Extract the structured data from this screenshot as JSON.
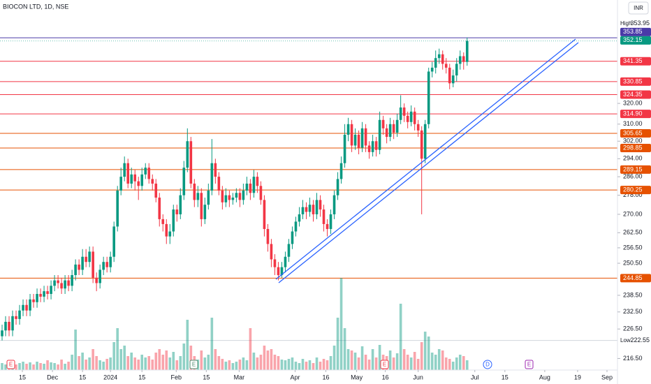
{
  "chart_data": {
    "type": "candlestick",
    "title": "BIOCON LTD, 1D, NSE",
    "currency": "INR",
    "log_scale": true,
    "grid": false,
    "ylim": [
      212.7,
      366.2
    ],
    "yticks": [
      {
        "value": 320,
        "label": "320.00"
      },
      {
        "value": 310,
        "label": "310.00"
      },
      {
        "value": 302,
        "label": "302.00"
      },
      {
        "value": 294,
        "label": "294.00"
      },
      {
        "value": 286,
        "label": "286.00"
      },
      {
        "value": 278,
        "label": "278.00"
      },
      {
        "value": 270,
        "label": "270.00"
      },
      {
        "value": 262.5,
        "label": "262.50"
      },
      {
        "value": 256.5,
        "label": "256.50"
      },
      {
        "value": 250.5,
        "label": "250.50"
      },
      {
        "value": 238.5,
        "label": "238.50"
      },
      {
        "value": 232.5,
        "label": "232.50"
      },
      {
        "value": 226.5,
        "label": "226.50"
      },
      {
        "value": 216.5,
        "label": "216.50"
      }
    ],
    "xlim": [
      -0.6,
      176
    ],
    "xticks": [
      {
        "value": 5.8,
        "label": "15"
      },
      {
        "value": 14.4,
        "label": "Dec"
      },
      {
        "value": 23,
        "label": "15"
      },
      {
        "value": 31,
        "label": "2024"
      },
      {
        "value": 40,
        "label": "15"
      },
      {
        "value": 49.8,
        "label": "Feb"
      },
      {
        "value": 58.4,
        "label": "15"
      },
      {
        "value": 67.8,
        "label": "Mar"
      },
      {
        "value": 83.8,
        "label": "Apr"
      },
      {
        "value": 92.6,
        "label": "16"
      },
      {
        "value": 101.4,
        "label": "May"
      },
      {
        "value": 109.6,
        "label": "16"
      },
      {
        "value": 119,
        "label": "Jun"
      },
      {
        "value": 135.2,
        "label": "Jul"
      },
      {
        "value": 143.8,
        "label": "15"
      },
      {
        "value": 155.2,
        "label": "Aug"
      },
      {
        "value": 164.6,
        "label": "19"
      },
      {
        "value": 173,
        "label": "Sep"
      }
    ],
    "up_color": "#089981",
    "down_color": "#f23645",
    "open": [
      224,
      226,
      229,
      226,
      231,
      230,
      233,
      235,
      233,
      237,
      236,
      239,
      238,
      240,
      239,
      242,
      244,
      243,
      241,
      244,
      242,
      246,
      250,
      248,
      253,
      251,
      255,
      245,
      243,
      248,
      251,
      249,
      253,
      265,
      280,
      286,
      292,
      283,
      287,
      284,
      282,
      287,
      290,
      285,
      283,
      277,
      268,
      266,
      261,
      263,
      272,
      270,
      278,
      290,
      302,
      283,
      276,
      279,
      268,
      274,
      280,
      292,
      286,
      280,
      275,
      278,
      276,
      277,
      279,
      276,
      280,
      283,
      279,
      286,
      282,
      276,
      264,
      258,
      252,
      249,
      246,
      249,
      253,
      258,
      263,
      267,
      270,
      273,
      271,
      274,
      270,
      276,
      272,
      266,
      264,
      270,
      278,
      285,
      292,
      305,
      310,
      300,
      305,
      299,
      308,
      300,
      297,
      302,
      298,
      312,
      308,
      304,
      310,
      306,
      312,
      318,
      314,
      311,
      316,
      310,
      307,
      294,
      310,
      336,
      338,
      343,
      345,
      340,
      338,
      330,
      334,
      340,
      344,
      341
    ],
    "high": [
      228,
      231,
      231,
      233,
      233,
      235,
      237,
      237,
      239,
      239,
      241,
      241,
      242,
      242,
      244,
      246,
      246,
      245,
      246,
      246,
      248,
      252,
      252,
      256,
      256,
      257,
      257,
      247,
      250,
      253,
      253,
      255,
      267,
      282,
      290,
      295,
      294,
      290,
      289,
      286,
      290,
      292,
      292,
      287,
      285,
      279,
      270,
      268,
      266,
      274,
      274,
      281,
      293,
      308,
      304,
      285,
      282,
      281,
      277,
      283,
      303,
      294,
      288,
      282,
      281,
      280,
      279,
      281,
      281,
      283,
      286,
      285,
      289,
      288,
      284,
      278,
      266,
      260,
      254,
      251,
      251,
      255,
      260,
      265,
      269,
      273,
      276,
      275,
      277,
      276,
      279,
      278,
      274,
      268,
      272,
      280,
      288,
      295,
      310,
      313,
      312,
      308,
      307,
      311,
      310,
      302,
      305,
      304,
      316,
      314,
      310,
      313,
      312,
      315,
      324,
      320,
      316,
      319,
      318,
      312,
      309,
      312,
      338,
      341,
      347,
      348,
      347,
      343,
      340,
      337,
      343,
      347,
      346,
      353.95
    ],
    "low": [
      222.55,
      224,
      224,
      224,
      228,
      228,
      231,
      231,
      231,
      234,
      234,
      236,
      236,
      237,
      237,
      240,
      241,
      239,
      239,
      240,
      240,
      244,
      246,
      246,
      249,
      249,
      243,
      240,
      241,
      246,
      247,
      247,
      251,
      263,
      278,
      284,
      281,
      281,
      280,
      276,
      280,
      285,
      283,
      280,
      275,
      265,
      263,
      258,
      258,
      261,
      267,
      268,
      276,
      288,
      281,
      273,
      273,
      265,
      266,
      272,
      278,
      283,
      278,
      272,
      273,
      273,
      274,
      275,
      273,
      274,
      278,
      276,
      277,
      279,
      274,
      261,
      255,
      249,
      246,
      244,
      245,
      247,
      251,
      256,
      261,
      265,
      268,
      268,
      269,
      267,
      268,
      269,
      263,
      261,
      262,
      268,
      276,
      283,
      290,
      302,
      297,
      298,
      296,
      297,
      297,
      294,
      295,
      295,
      296,
      305,
      301,
      302,
      303,
      304,
      310,
      311,
      308,
      309,
      307,
      304,
      270,
      292,
      308,
      333,
      335,
      340,
      337,
      335,
      327,
      328,
      331,
      337,
      337,
      339
    ],
    "close": [
      226,
      229,
      226,
      231,
      230,
      233,
      235,
      233,
      237,
      236,
      239,
      238,
      240,
      239,
      242,
      244,
      243,
      241,
      244,
      242,
      246,
      250,
      248,
      253,
      251,
      255,
      245,
      243,
      248,
      251,
      249,
      253,
      265,
      280,
      286,
      292,
      283,
      287,
      284,
      282,
      287,
      290,
      285,
      283,
      277,
      268,
      266,
      261,
      263,
      272,
      270,
      278,
      290,
      302,
      283,
      276,
      279,
      268,
      274,
      280,
      292,
      286,
      280,
      275,
      278,
      276,
      277,
      279,
      276,
      280,
      283,
      279,
      286,
      282,
      276,
      264,
      258,
      252,
      249,
      246,
      249,
      253,
      258,
      263,
      267,
      270,
      273,
      271,
      274,
      270,
      276,
      272,
      266,
      264,
      270,
      278,
      285,
      292,
      305,
      310,
      300,
      305,
      299,
      308,
      300,
      297,
      302,
      298,
      312,
      308,
      304,
      310,
      306,
      312,
      318,
      314,
      311,
      316,
      310,
      307,
      294,
      310,
      336,
      338,
      343,
      345,
      340,
      338,
      330,
      334,
      340,
      344,
      341,
      352.15
    ],
    "volume": [
      10,
      8,
      12,
      9,
      8,
      10,
      12,
      9,
      11,
      8,
      12,
      10,
      9,
      14,
      11,
      10,
      8,
      15,
      9,
      12,
      22,
      58,
      20,
      25,
      15,
      18,
      30,
      20,
      14,
      12,
      16,
      18,
      40,
      60,
      30,
      35,
      20,
      25,
      18,
      15,
      22,
      18,
      20,
      15,
      25,
      30,
      22,
      28,
      18,
      26,
      14,
      20,
      38,
      72,
      35,
      20,
      15,
      28,
      18,
      22,
      75,
      30,
      20,
      16,
      12,
      14,
      10,
      12,
      15,
      18,
      14,
      60,
      25,
      18,
      22,
      35,
      28,
      30,
      22,
      20,
      15,
      14,
      16,
      18,
      12,
      10,
      16,
      12,
      14,
      10,
      18,
      12,
      16,
      14,
      20,
      35,
      75,
      132,
      60,
      30,
      28,
      25,
      18,
      34,
      22,
      15,
      30,
      18,
      36,
      22,
      20,
      28,
      18,
      24,
      95,
      30,
      22,
      18,
      26,
      16,
      40,
      55,
      48,
      25,
      22,
      30,
      28,
      18,
      16,
      12,
      18,
      22,
      20,
      14
    ],
    "vlim": [
      0,
      140
    ],
    "levels": [
      {
        "value": 341.35,
        "color": "#f23645"
      },
      {
        "value": 330.85,
        "color": "#f23645"
      },
      {
        "value": 324.35,
        "color": "#f23645"
      },
      {
        "value": 314.9,
        "label": "314.90",
        "color": "#f23645"
      },
      {
        "value": 305.65,
        "color": "#e65100"
      },
      {
        "value": 298.85,
        "color": "#e65100"
      },
      {
        "value": 289.15,
        "color": "#e65100"
      },
      {
        "value": 280.25,
        "color": "#e65100"
      },
      {
        "value": 244.85,
        "color": "#e65100"
      }
    ],
    "high_marker": {
      "label": "High",
      "value": 353.95
    },
    "low_marker": {
      "label": "Low",
      "value": 222.55
    },
    "prev_price": {
      "value": 353.85,
      "color": "#4a3aa8"
    },
    "last_price": {
      "value": 352.15,
      "color": "#089981"
    },
    "markers": [
      "E",
      "E",
      "E",
      "D",
      "E"
    ]
  }
}
